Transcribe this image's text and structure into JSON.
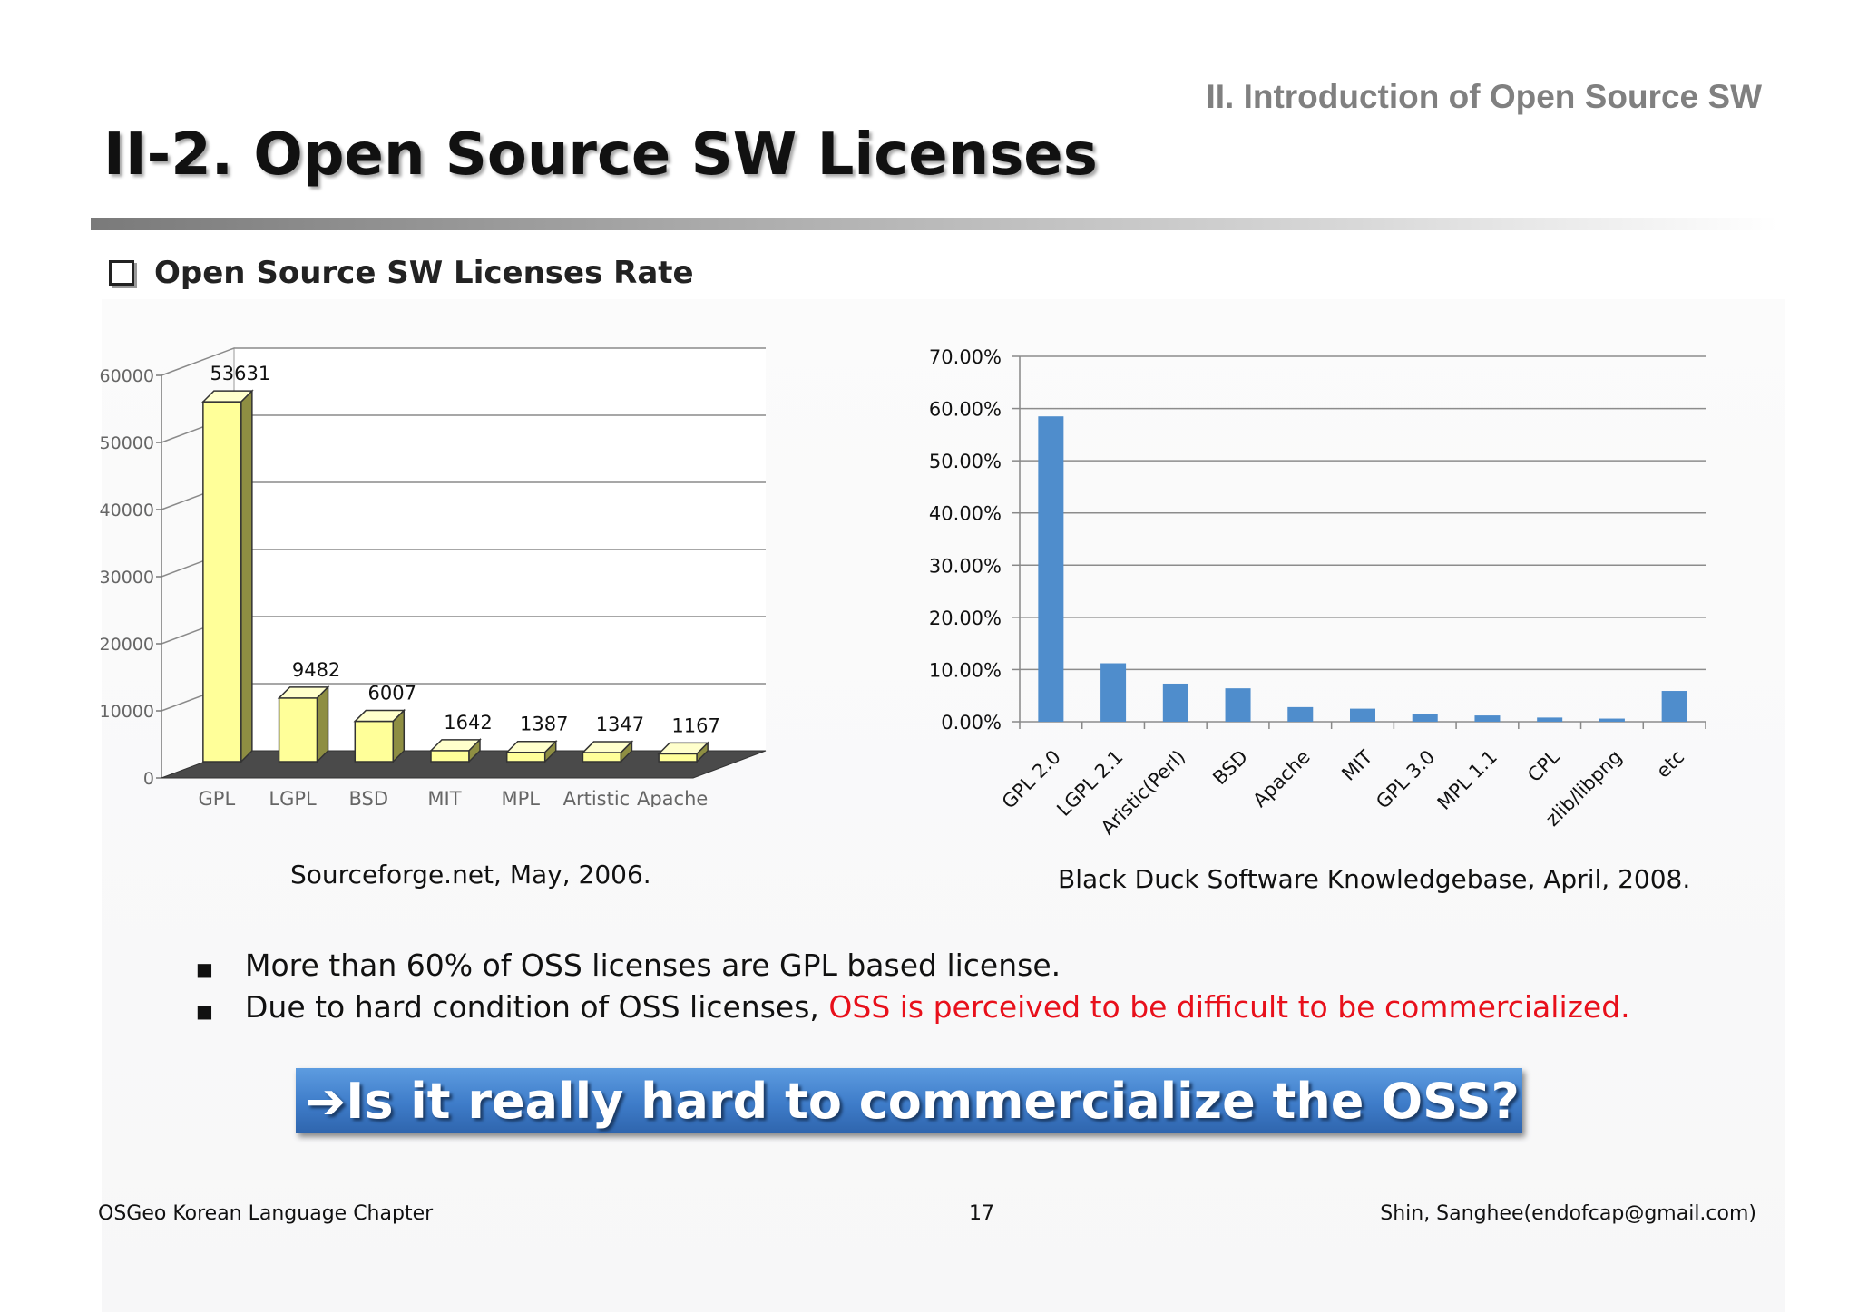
{
  "header": {
    "section_label": "II. Introduction of Open Source SW",
    "title": "II-2. Open Source SW Licenses"
  },
  "subheading": "Open Source SW Licenses Rate",
  "chart_data": [
    {
      "type": "bar",
      "style": "3d-column",
      "categories": [
        "GPL",
        "LGPL",
        "BSD",
        "MIT",
        "MPL",
        "Artistic",
        "Apache"
      ],
      "values": [
        53631,
        9482,
        6007,
        1642,
        1387,
        1347,
        1167
      ],
      "value_labels": [
        "53631",
        "9482",
        "6007",
        "1642",
        "1387",
        "1347",
        "1167"
      ],
      "y_ticks": [
        0,
        10000,
        20000,
        30000,
        40000,
        50000,
        60000
      ],
      "y_tick_labels": [
        "0",
        "10000",
        "20000",
        "30000",
        "40000",
        "50000",
        "60000"
      ],
      "ylim": [
        0,
        60000
      ],
      "grid": true,
      "bar_color": "#ffff99",
      "caption": "Sourceforge.net,  May, 2006."
    },
    {
      "type": "bar",
      "categories": [
        "GPL 2.0",
        "LGPL 2.1",
        "Aristic(Perl)",
        "BSD",
        "Apache",
        "MIT",
        "GPL 3.0",
        "MPL 1.1",
        "CPL",
        "zlib/libpng",
        "etc"
      ],
      "values": [
        58.5,
        11.2,
        7.3,
        6.4,
        2.8,
        2.5,
        1.5,
        1.2,
        0.8,
        0.6,
        5.9
      ],
      "y_ticks": [
        0,
        10,
        20,
        30,
        40,
        50,
        60,
        70
      ],
      "y_tick_labels": [
        "0.00%",
        "10.00%",
        "20.00%",
        "30.00%",
        "40.00%",
        "50.00%",
        "60.00%",
        "70.00%"
      ],
      "ylim": [
        0,
        70
      ],
      "grid": true,
      "bar_color": "#4f8dcc",
      "caption": "Black Duck Software Knowledgebase, April, 2008."
    }
  ],
  "bullets": [
    {
      "text": "More than 60% of OSS licenses are GPL based license.",
      "highlight": ""
    },
    {
      "text": "Due to hard condition of OSS licenses, ",
      "highlight": "OSS is perceived to be difficult to be commercialized."
    }
  ],
  "callout": "➔Is it really hard to commercialize the OSS?",
  "footer": {
    "left": "OSGeo Korean Language Chapter",
    "page_number": "17",
    "right": "Shin, Sanghee(endofcap@gmail.com)"
  }
}
